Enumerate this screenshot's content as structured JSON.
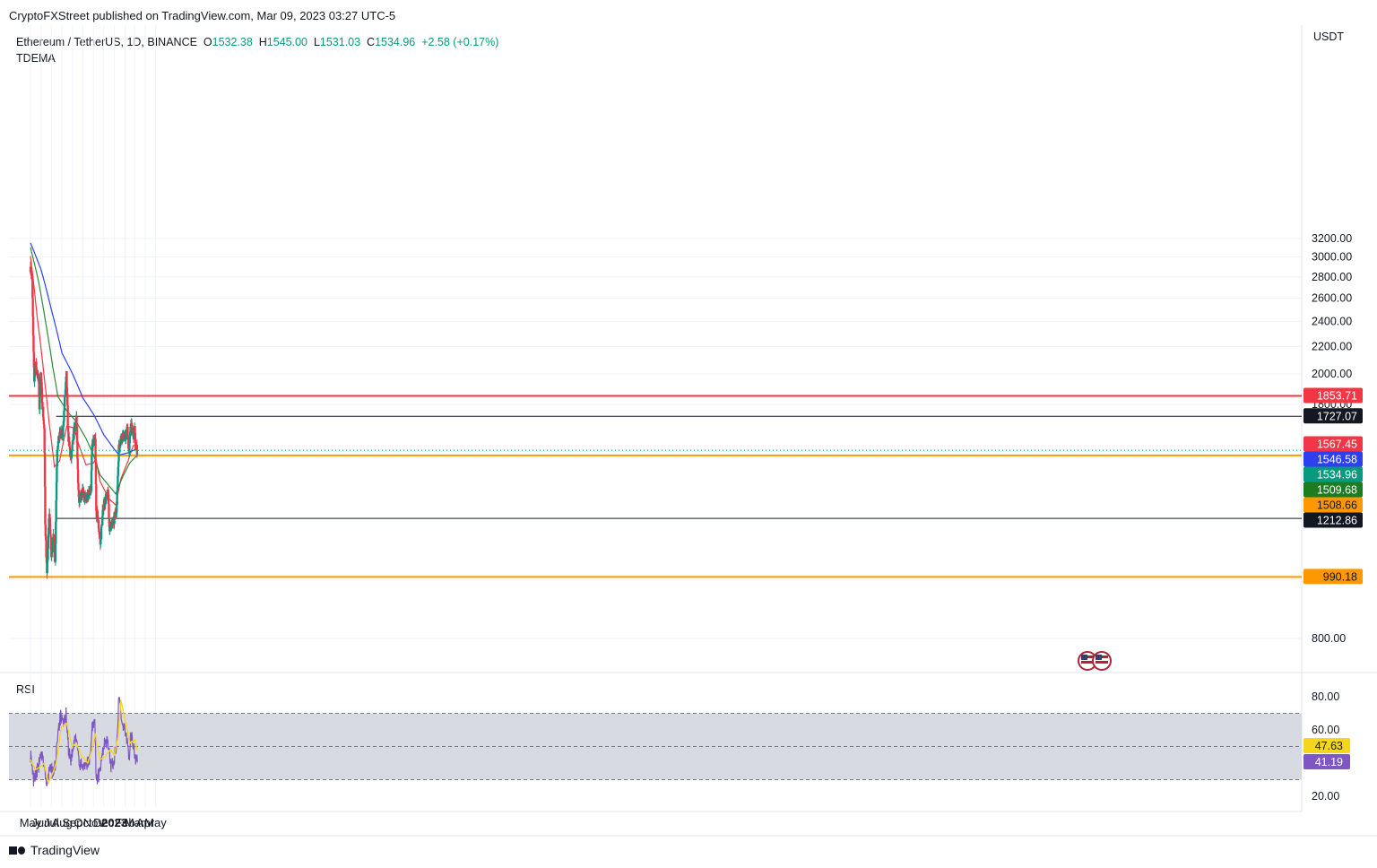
{
  "header": {
    "published": "CryptoFXStreet published on TradingView.com, Mar 09, 2023 03:27 UTC-5"
  },
  "legend": {
    "symbol": "Ethereum / TetherUS, 1D, BINANCE",
    "o_label": "O",
    "o": "1532.38",
    "h_label": "H",
    "h": "1545.00",
    "l_label": "L",
    "l": "1531.03",
    "c_label": "C",
    "c": "1534.96",
    "change": "+2.58 (+0.17%)",
    "indicator": "TDEMA"
  },
  "rsi_panel": {
    "label": "RSI"
  },
  "price_axis": {
    "unit": "USDT"
  },
  "footer": {
    "brand": "TradingView"
  },
  "colors": {
    "up": "#089981",
    "down": "#F23645",
    "ema_red": "#F23645",
    "ema_green": "#2E8B32",
    "ema_blue": "#2E3FEF",
    "resistance": "#F23645",
    "support": "#FF9800",
    "rsi": "#7E57C2",
    "rsi_ma": "#F6D51D"
  },
  "chart_data": [
    {
      "type": "candlestick",
      "title": "Ethereum / TetherUS, 1D, BINANCE",
      "x_axis_labels": [
        "May",
        "Jun",
        "Jul",
        "Aug",
        "Sep",
        "Oct",
        "Nov",
        "Dec",
        "2023",
        "Feb",
        "Mar",
        "Apr",
        "May"
      ],
      "y_ticks": [
        800,
        1800,
        2000,
        2200,
        2400,
        2600,
        2800,
        3000,
        3200
      ],
      "y_tick_labels": [
        "800.00",
        "1800.00",
        "2000.00",
        "2200.00",
        "2400.00",
        "2600.00",
        "2800.00",
        "3000.00",
        "3200.00"
      ],
      "ylim": [
        680,
        3320
      ],
      "ohlc_series": {
        "name": "ETH/USDT",
        "anchors": [
          [
            "2022-05-01",
            2900
          ],
          [
            "2022-05-06",
            2750
          ],
          [
            "2022-05-09",
            2250
          ],
          [
            "2022-05-12",
            1960
          ],
          [
            "2022-05-16",
            2070
          ],
          [
            "2022-05-25",
            1950
          ],
          [
            "2022-05-27",
            1780
          ],
          [
            "2022-05-31",
            2000
          ],
          [
            "2022-06-05",
            1800
          ],
          [
            "2022-06-10",
            1650
          ],
          [
            "2022-06-13",
            1200
          ],
          [
            "2022-06-18",
            990
          ],
          [
            "2022-06-25",
            1240
          ],
          [
            "2022-07-01",
            1060
          ],
          [
            "2022-07-06",
            1150
          ],
          [
            "2022-07-12",
            1040
          ],
          [
            "2022-07-18",
            1550
          ],
          [
            "2022-07-27",
            1630
          ],
          [
            "2022-08-03",
            1620
          ],
          [
            "2022-08-14",
            1990
          ],
          [
            "2022-08-19",
            1620
          ],
          [
            "2022-08-27",
            1480
          ],
          [
            "2022-09-02",
            1580
          ],
          [
            "2022-09-06",
            1660
          ],
          [
            "2022-09-12",
            1720
          ],
          [
            "2022-09-15",
            1480
          ],
          [
            "2022-09-19",
            1300
          ],
          [
            "2022-09-30",
            1330
          ],
          [
            "2022-10-10",
            1290
          ],
          [
            "2022-10-25",
            1350
          ],
          [
            "2022-10-28",
            1560
          ],
          [
            "2022-11-06",
            1590
          ],
          [
            "2022-11-09",
            1240
          ],
          [
            "2022-11-13",
            1220
          ],
          [
            "2022-11-21",
            1110
          ],
          [
            "2022-11-30",
            1270
          ],
          [
            "2022-12-14",
            1320
          ],
          [
            "2022-12-17",
            1180
          ],
          [
            "2022-12-31",
            1200
          ],
          [
            "2023-01-08",
            1270
          ],
          [
            "2023-01-14",
            1550
          ],
          [
            "2023-01-22",
            1620
          ],
          [
            "2023-02-01",
            1600
          ],
          [
            "2023-02-08",
            1650
          ],
          [
            "2023-02-13",
            1510
          ],
          [
            "2023-02-17",
            1690
          ],
          [
            "2023-02-25",
            1610
          ],
          [
            "2023-03-01",
            1660
          ],
          [
            "2023-03-03",
            1560
          ],
          [
            "2023-03-09",
            1534.96
          ]
        ]
      },
      "ema_lines": [
        {
          "name": "EMA red",
          "color": "#F23645",
          "anchors": [
            [
              "2022-05-01",
              3010
            ],
            [
              "2022-05-20",
              2450
            ],
            [
              "2022-06-10",
              1980
            ],
            [
              "2022-06-25",
              1680
            ],
            [
              "2022-07-10",
              1450
            ],
            [
              "2022-07-25",
              1480
            ],
            [
              "2022-08-15",
              1670
            ],
            [
              "2022-09-05",
              1660
            ],
            [
              "2022-09-20",
              1560
            ],
            [
              "2022-10-10",
              1460
            ],
            [
              "2022-11-01",
              1470
            ],
            [
              "2022-11-08",
              1490
            ],
            [
              "2022-11-20",
              1380
            ],
            [
              "2022-12-15",
              1300
            ],
            [
              "2023-01-05",
              1270
            ],
            [
              "2023-01-20",
              1390
            ],
            [
              "2023-02-10",
              1480
            ],
            [
              "2023-02-25",
              1560
            ],
            [
              "2023-03-09",
              1567.45
            ]
          ]
        },
        {
          "name": "EMA green",
          "color": "#2E8B32",
          "anchors": [
            [
              "2022-05-01",
              3100
            ],
            [
              "2022-05-25",
              2750
            ],
            [
              "2022-06-15",
              2380
            ],
            [
              "2022-07-05",
              2050
            ],
            [
              "2022-07-20",
              1850
            ],
            [
              "2022-08-15",
              1760
            ],
            [
              "2022-09-10",
              1700
            ],
            [
              "2022-10-10",
              1600
            ],
            [
              "2022-11-01",
              1510
            ],
            [
              "2022-11-20",
              1410
            ],
            [
              "2022-12-15",
              1360
            ],
            [
              "2023-01-05",
              1320
            ],
            [
              "2023-01-25",
              1400
            ],
            [
              "2023-02-15",
              1470
            ],
            [
              "2023-03-09",
              1509.68
            ]
          ]
        },
        {
          "name": "EMA blue",
          "color": "#2E3FEF",
          "anchors": [
            [
              "2022-05-01",
              3150
            ],
            [
              "2022-06-01",
              2870
            ],
            [
              "2022-07-01",
              2500
            ],
            [
              "2022-08-01",
              2150
            ],
            [
              "2022-09-01",
              2000
            ],
            [
              "2022-10-01",
              1840
            ],
            [
              "2022-11-01",
              1740
            ],
            [
              "2022-12-01",
              1620
            ],
            [
              "2023-01-01",
              1540
            ],
            [
              "2023-01-15",
              1510
            ],
            [
              "2023-02-15",
              1525
            ],
            [
              "2023-03-09",
              1546.58
            ]
          ]
        }
      ],
      "horizontal_levels": [
        {
          "value": 1853.71,
          "label": "1853.71",
          "color": "#F23645",
          "bg": "#F23645",
          "text_color": "#ffffff"
        },
        {
          "value": 1727.07,
          "label": "1727.07",
          "color": "#131722",
          "bg": "#131722",
          "text_color": "#ffffff",
          "from": "2022-07-15"
        },
        {
          "value": 1508.66,
          "label": "1508.66",
          "color": "#FF9800",
          "bg": "#FF9800",
          "text_color": "#131722"
        },
        {
          "value": 1212.86,
          "label": "1212.86",
          "color": "#131722",
          "bg": "#131722",
          "text_color": "#ffffff",
          "from": "2022-07-15"
        },
        {
          "value": 990.18,
          "label": "990.18",
          "color": "#FF9800",
          "bg": "#FF9800",
          "text_color": "#131722"
        }
      ],
      "price_labels": [
        {
          "value": 1567.45,
          "label": "1567.45",
          "bg": "#F23645"
        },
        {
          "value": 1546.58,
          "label": "1546.58",
          "bg": "#2E3FEF"
        },
        {
          "value": 1534.96,
          "label": "1534.96",
          "bg": "#089981"
        },
        {
          "value": 1509.68,
          "label": "1509.68",
          "bg": "#1B7D1F"
        }
      ]
    },
    {
      "type": "line",
      "title": "RSI",
      "y_ticks": [
        20,
        40,
        60,
        80
      ],
      "y_tick_labels": [
        "20.00",
        "",
        "60.00",
        "80.00"
      ],
      "ylim": [
        12,
        90
      ],
      "band": [
        30,
        70
      ],
      "midline": 50,
      "series": [
        {
          "name": "RSI",
          "color": "#7E57C2",
          "last": "41.19",
          "anchors": [
            [
              "2022-05-01",
              45
            ],
            [
              "2022-05-10",
              30
            ],
            [
              "2022-05-20",
              35
            ],
            [
              "2022-06-01",
              44
            ],
            [
              "2022-06-10",
              40
            ],
            [
              "2022-06-18",
              24
            ],
            [
              "2022-06-25",
              38
            ],
            [
              "2022-07-05",
              34
            ],
            [
              "2022-07-12",
              38
            ],
            [
              "2022-07-20",
              60
            ],
            [
              "2022-07-28",
              68
            ],
            [
              "2022-08-05",
              62
            ],
            [
              "2022-08-14",
              70
            ],
            [
              "2022-08-20",
              48
            ],
            [
              "2022-08-28",
              42
            ],
            [
              "2022-09-06",
              52
            ],
            [
              "2022-09-12",
              58
            ],
            [
              "2022-09-20",
              38
            ],
            [
              "2022-10-05",
              40
            ],
            [
              "2022-10-20",
              40
            ],
            [
              "2022-10-28",
              62
            ],
            [
              "2022-11-05",
              64
            ],
            [
              "2022-11-09",
              30
            ],
            [
              "2022-11-20",
              34
            ],
            [
              "2022-12-01",
              52
            ],
            [
              "2022-12-15",
              52
            ],
            [
              "2022-12-20",
              38
            ],
            [
              "2023-01-01",
              42
            ],
            [
              "2023-01-08",
              55
            ],
            [
              "2023-01-15",
              82
            ],
            [
              "2023-01-22",
              66
            ],
            [
              "2023-02-01",
              58
            ],
            [
              "2023-02-08",
              55
            ],
            [
              "2023-02-13",
              42
            ],
            [
              "2023-02-18",
              58
            ],
            [
              "2023-02-25",
              50
            ],
            [
              "2023-03-03",
              44
            ],
            [
              "2023-03-09",
              41.19
            ]
          ]
        },
        {
          "name": "RSI MA",
          "color": "#F6D51D",
          "last": "47.63",
          "anchors": [
            [
              "2022-05-01",
              42
            ],
            [
              "2022-05-15",
              36
            ],
            [
              "2022-06-01",
              38
            ],
            [
              "2022-06-10",
              40
            ],
            [
              "2022-06-22",
              28
            ],
            [
              "2022-07-05",
              34
            ],
            [
              "2022-07-15",
              40
            ],
            [
              "2022-07-30",
              62
            ],
            [
              "2022-08-15",
              64
            ],
            [
              "2022-08-30",
              50
            ],
            [
              "2022-09-12",
              52
            ],
            [
              "2022-09-25",
              45
            ],
            [
              "2022-10-15",
              40
            ],
            [
              "2022-10-28",
              48
            ],
            [
              "2022-11-06",
              58
            ],
            [
              "2022-11-20",
              42
            ],
            [
              "2022-12-05",
              44
            ],
            [
              "2022-12-20",
              48
            ],
            [
              "2023-01-01",
              45
            ],
            [
              "2023-01-12",
              56
            ],
            [
              "2023-01-20",
              78
            ],
            [
              "2023-02-01",
              66
            ],
            [
              "2023-02-15",
              52
            ],
            [
              "2023-03-01",
              54
            ],
            [
              "2023-03-09",
              47.63
            ]
          ]
        }
      ]
    }
  ]
}
